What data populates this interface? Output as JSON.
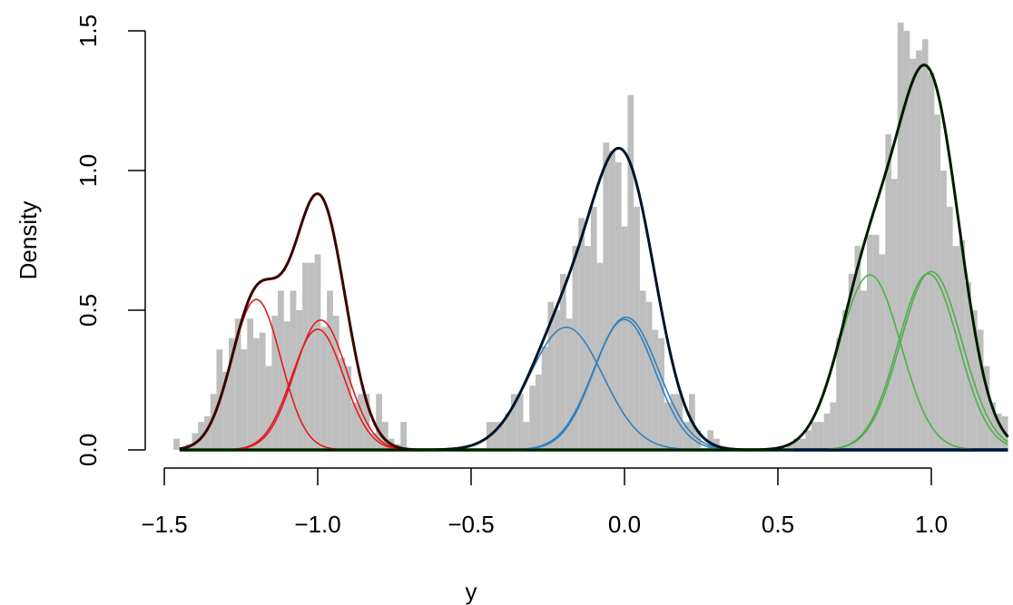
{
  "chart_data": {
    "type": "histogram",
    "title": "",
    "xlabel": "y",
    "ylabel": "Density",
    "xlim": [
      -1.5,
      1.25
    ],
    "ylim": [
      0,
      1.5
    ],
    "x_ticks": [
      "-1.5",
      "-1.0",
      "-0.5",
      "0.0",
      "0.5",
      "1.0"
    ],
    "y_ticks": [
      "0.0",
      "0.5",
      "1.0",
      "1.5"
    ],
    "histogram": {
      "bin_width": 0.02,
      "color": "#bebebe",
      "bins": [
        {
          "x": -1.46,
          "y": 0.04
        },
        {
          "x": -1.44,
          "y": 0.0
        },
        {
          "x": -1.42,
          "y": 0.02
        },
        {
          "x": -1.4,
          "y": 0.06
        },
        {
          "x": -1.38,
          "y": 0.1
        },
        {
          "x": -1.36,
          "y": 0.12
        },
        {
          "x": -1.34,
          "y": 0.2
        },
        {
          "x": -1.32,
          "y": 0.36
        },
        {
          "x": -1.3,
          "y": 0.28
        },
        {
          "x": -1.28,
          "y": 0.4
        },
        {
          "x": -1.26,
          "y": 0.47
        },
        {
          "x": -1.24,
          "y": 0.36
        },
        {
          "x": -1.22,
          "y": 0.47
        },
        {
          "x": -1.2,
          "y": 0.4
        },
        {
          "x": -1.18,
          "y": 0.42
        },
        {
          "x": -1.16,
          "y": 0.3
        },
        {
          "x": -1.14,
          "y": 0.48
        },
        {
          "x": -1.12,
          "y": 0.57
        },
        {
          "x": -1.1,
          "y": 0.46
        },
        {
          "x": -1.08,
          "y": 0.57
        },
        {
          "x": -1.06,
          "y": 0.5
        },
        {
          "x": -1.04,
          "y": 0.67
        },
        {
          "x": -1.02,
          "y": 0.67
        },
        {
          "x": -1.0,
          "y": 0.7
        },
        {
          "x": -0.98,
          "y": 0.44
        },
        {
          "x": -0.96,
          "y": 0.57
        },
        {
          "x": -0.94,
          "y": 0.48
        },
        {
          "x": -0.92,
          "y": 0.33
        },
        {
          "x": -0.9,
          "y": 0.3
        },
        {
          "x": -0.88,
          "y": 0.17
        },
        {
          "x": -0.86,
          "y": 0.2
        },
        {
          "x": -0.84,
          "y": 0.2
        },
        {
          "x": -0.82,
          "y": 0.06
        },
        {
          "x": -0.8,
          "y": 0.2
        },
        {
          "x": -0.78,
          "y": 0.1
        },
        {
          "x": -0.76,
          "y": 0.04
        },
        {
          "x": -0.74,
          "y": 0.02
        },
        {
          "x": -0.72,
          "y": 0.1
        },
        {
          "x": -0.7,
          "y": 0.0
        },
        {
          "x": -0.44,
          "y": 0.1
        },
        {
          "x": -0.42,
          "y": 0.1
        },
        {
          "x": -0.4,
          "y": 0.1
        },
        {
          "x": -0.38,
          "y": 0.13
        },
        {
          "x": -0.36,
          "y": 0.2
        },
        {
          "x": -0.34,
          "y": 0.2
        },
        {
          "x": -0.32,
          "y": 0.1
        },
        {
          "x": -0.3,
          "y": 0.23
        },
        {
          "x": -0.28,
          "y": 0.27
        },
        {
          "x": -0.26,
          "y": 0.37
        },
        {
          "x": -0.24,
          "y": 0.53
        },
        {
          "x": -0.22,
          "y": 0.5
        },
        {
          "x": -0.2,
          "y": 0.63
        },
        {
          "x": -0.18,
          "y": 0.47
        },
        {
          "x": -0.16,
          "y": 0.73
        },
        {
          "x": -0.14,
          "y": 0.83
        },
        {
          "x": -0.12,
          "y": 0.73
        },
        {
          "x": -0.1,
          "y": 0.87
        },
        {
          "x": -0.08,
          "y": 0.67
        },
        {
          "x": -0.06,
          "y": 1.1
        },
        {
          "x": -0.04,
          "y": 1.07
        },
        {
          "x": -0.02,
          "y": 1.03
        },
        {
          "x": 0.0,
          "y": 0.8
        },
        {
          "x": 0.02,
          "y": 1.27
        },
        {
          "x": 0.04,
          "y": 0.87
        },
        {
          "x": 0.06,
          "y": 0.57
        },
        {
          "x": 0.08,
          "y": 0.53
        },
        {
          "x": 0.1,
          "y": 0.43
        },
        {
          "x": 0.12,
          "y": 0.4
        },
        {
          "x": 0.14,
          "y": 0.17
        },
        {
          "x": 0.16,
          "y": 0.2
        },
        {
          "x": 0.18,
          "y": 0.2
        },
        {
          "x": 0.2,
          "y": 0.1
        },
        {
          "x": 0.22,
          "y": 0.2
        },
        {
          "x": 0.24,
          "y": 0.07
        },
        {
          "x": 0.26,
          "y": 0.0
        },
        {
          "x": 0.28,
          "y": 0.07
        },
        {
          "x": 0.3,
          "y": 0.04
        },
        {
          "x": 0.32,
          "y": 0.0
        },
        {
          "x": 0.54,
          "y": 0.02
        },
        {
          "x": 0.56,
          "y": 0.04
        },
        {
          "x": 0.58,
          "y": 0.04
        },
        {
          "x": 0.6,
          "y": 0.07
        },
        {
          "x": 0.62,
          "y": 0.1
        },
        {
          "x": 0.64,
          "y": 0.1
        },
        {
          "x": 0.66,
          "y": 0.13
        },
        {
          "x": 0.68,
          "y": 0.17
        },
        {
          "x": 0.7,
          "y": 0.4
        },
        {
          "x": 0.72,
          "y": 0.5
        },
        {
          "x": 0.74,
          "y": 0.63
        },
        {
          "x": 0.76,
          "y": 0.73
        },
        {
          "x": 0.78,
          "y": 0.57
        },
        {
          "x": 0.8,
          "y": 0.77
        },
        {
          "x": 0.82,
          "y": 0.77
        },
        {
          "x": 0.84,
          "y": 0.7
        },
        {
          "x": 0.86,
          "y": 1.13
        },
        {
          "x": 0.88,
          "y": 0.97
        },
        {
          "x": 0.9,
          "y": 1.53
        },
        {
          "x": 0.92,
          "y": 1.5
        },
        {
          "x": 0.94,
          "y": 1.4
        },
        {
          "x": 0.96,
          "y": 1.43
        },
        {
          "x": 0.98,
          "y": 1.47
        },
        {
          "x": 1.0,
          "y": 1.35
        },
        {
          "x": 1.02,
          "y": 1.2
        },
        {
          "x": 1.04,
          "y": 1.0
        },
        {
          "x": 1.06,
          "y": 0.87
        },
        {
          "x": 1.08,
          "y": 0.73
        },
        {
          "x": 1.1,
          "y": 0.75
        },
        {
          "x": 1.12,
          "y": 0.6
        },
        {
          "x": 1.14,
          "y": 0.5
        },
        {
          "x": 1.16,
          "y": 0.43
        },
        {
          "x": 1.18,
          "y": 0.3
        },
        {
          "x": 1.2,
          "y": 0.17
        },
        {
          "x": 1.22,
          "y": 0.13
        },
        {
          "x": 1.24,
          "y": 0.12
        }
      ]
    },
    "density_curves": {
      "x_range": [
        -1.45,
        1.25
      ],
      "baselines": [
        {
          "color": "#2166ac",
          "x_range": [
            0.55,
            1.25
          ]
        },
        {
          "color": "#4daf4a",
          "x_range": [
            -1.45,
            0.55
          ]
        }
      ],
      "groups": [
        {
          "mixture_color": "#3b0000",
          "component_color": "#e31a1c",
          "components": [
            {
              "weight": 0.108,
              "mean": -1.2,
              "sd": 0.08
            },
            {
              "weight": 0.092,
              "mean": -1.0,
              "sd": 0.085
            },
            {
              "weight": 0.099,
              "mean": -0.99,
              "sd": 0.085
            }
          ]
        },
        {
          "mixture_color": "#001326",
          "component_color": "#3182bd",
          "components": [
            {
              "weight": 0.132,
              "mean": -0.19,
              "sd": 0.12
            },
            {
              "weight": 0.117,
              "mean": 0.0,
              "sd": 0.1
            },
            {
              "weight": 0.125,
              "mean": 0.005,
              "sd": 0.105
            }
          ]
        },
        {
          "mixture_color": "#001a00",
          "component_color": "#4daf4a",
          "components": [
            {
              "weight": 0.157,
              "mean": 0.8,
              "sd": 0.1
            },
            {
              "weight": 0.155,
              "mean": 0.99,
              "sd": 0.098
            },
            {
              "weight": 0.16,
              "mean": 1.0,
              "sd": 0.1
            }
          ]
        }
      ]
    },
    "grid": false,
    "legend": "none"
  }
}
